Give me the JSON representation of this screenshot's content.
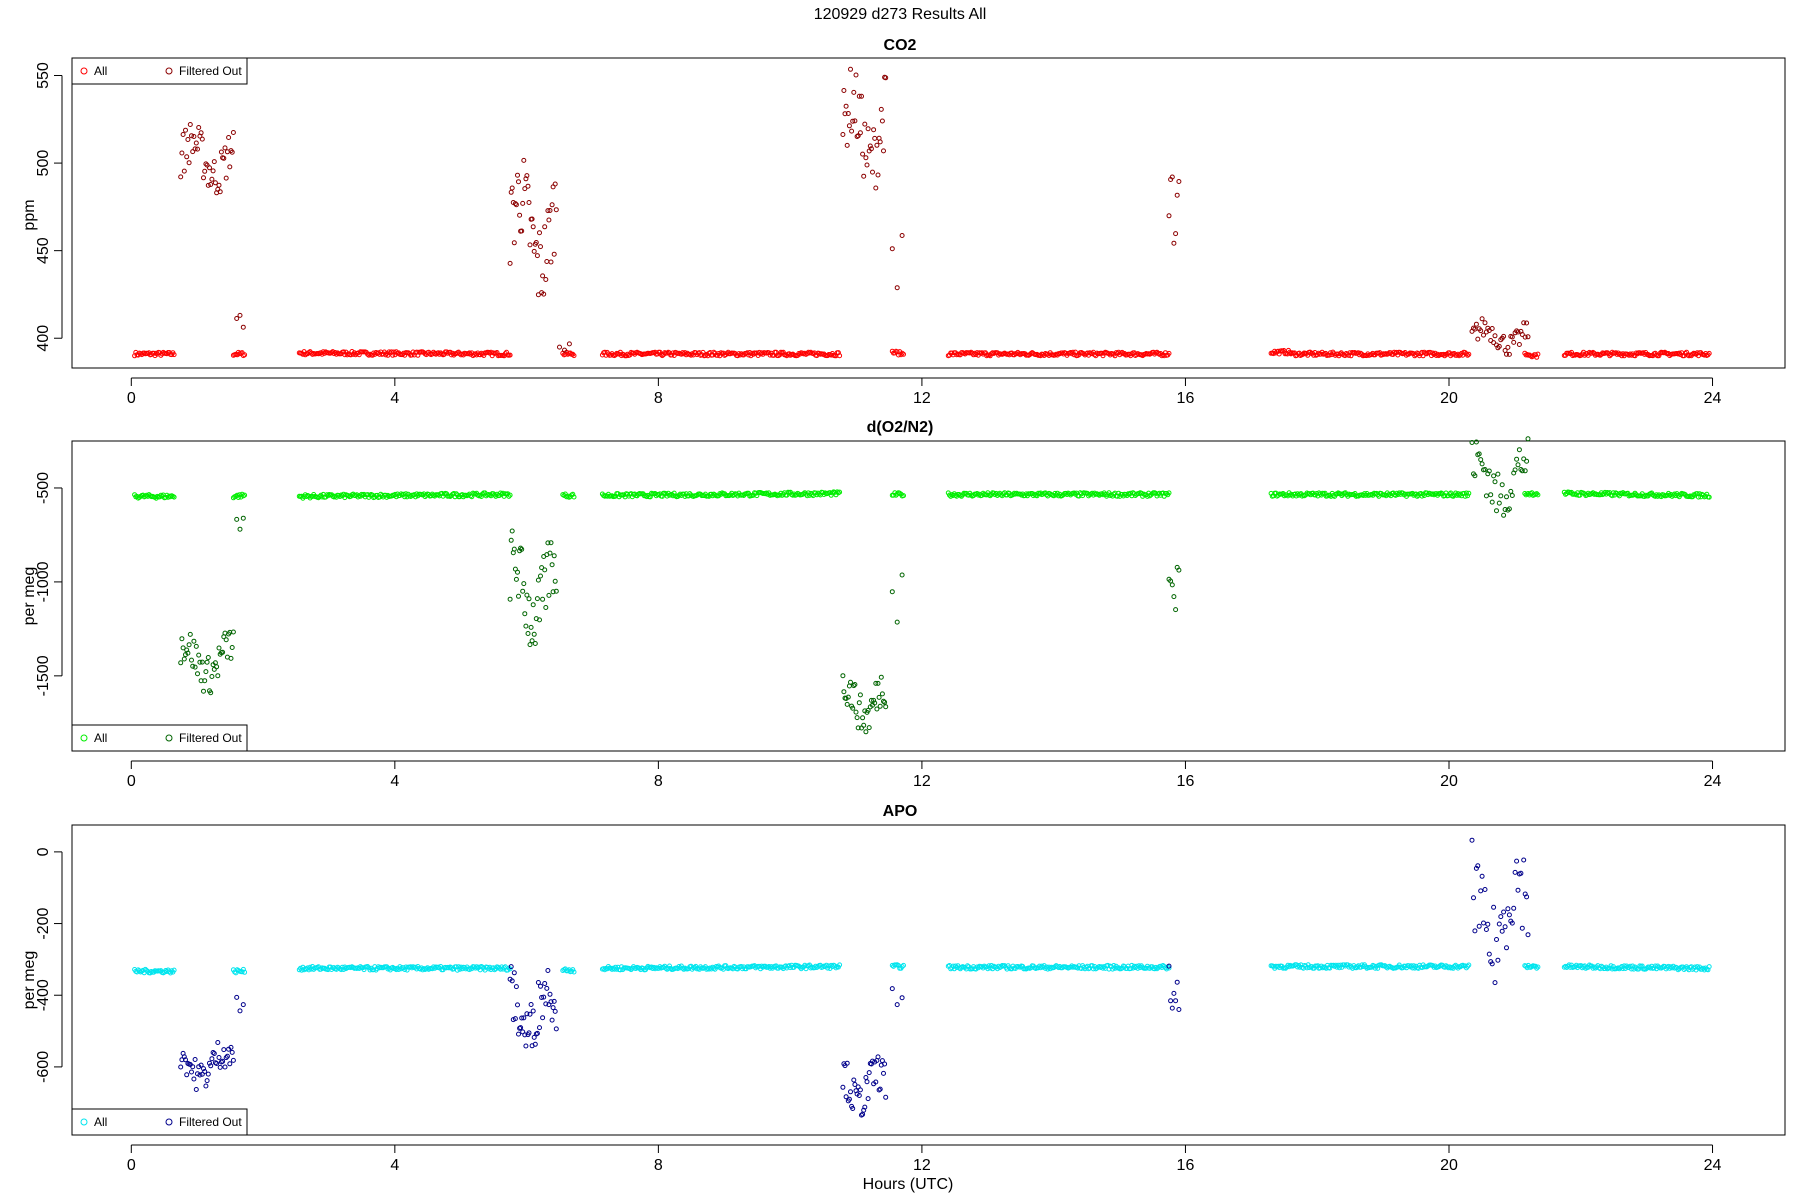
{
  "figure_title": "120929   d273   Results All",
  "colors": {
    "co2_all": "#ff0000",
    "co2_filtered": "#8b0000",
    "o2_all": "#00ee00",
    "o2_filtered": "#006400",
    "apo_all": "#00e5ee",
    "apo_filtered": "#00008b"
  },
  "chart_data": [
    {
      "type": "scatter",
      "title": "CO2",
      "xlabel": "",
      "ylabel": "ppm",
      "xlim": [
        -0.9,
        25.1
      ],
      "ylim": [
        383,
        560
      ],
      "xticks": [
        0,
        4,
        8,
        12,
        16,
        20,
        24
      ],
      "yticks": [
        400,
        450,
        500,
        550
      ],
      "legend": {
        "placement": "top-left",
        "entries": [
          "All",
          "Filtered Out"
        ]
      },
      "series": [
        {
          "name": "All",
          "color": "#ff0000",
          "baseline": [
            {
              "x": [
                0.05,
                0.65
              ],
              "y": [
                391,
                391
              ]
            },
            {
              "x": [
                1.55,
                1.72
              ],
              "y": [
                391,
                391
              ]
            },
            {
              "x": [
                2.55,
                5.75
              ],
              "y": [
                391.5,
                391
              ]
            },
            {
              "x": [
                6.55,
                6.72
              ],
              "y": [
                391,
                391
              ]
            },
            {
              "x": [
                7.15,
                10.75
              ],
              "y": [
                391,
                391
              ]
            },
            {
              "x": [
                11.55,
                11.72
              ],
              "y": [
                392,
                391
              ]
            },
            {
              "x": [
                12.4,
                15.75
              ],
              "y": [
                391,
                391
              ]
            },
            {
              "x": [
                17.3,
                17.6
              ],
              "y": [
                392,
                392
              ]
            },
            {
              "x": [
                17.6,
                20.3
              ],
              "y": [
                391,
                391
              ]
            },
            {
              "x": [
                21.15,
                21.35
              ],
              "y": [
                391,
                390
              ]
            },
            {
              "x": [
                21.75,
                23.95
              ],
              "y": [
                391,
                391
              ]
            }
          ]
        },
        {
          "name": "Filtered Out",
          "color": "#8b0000",
          "clusters": [
            {
              "x": [
                0.75,
                1.55
              ],
              "y": [
                480,
                525
              ],
              "n": 45
            },
            {
              "x": [
                1.6,
                1.7
              ],
              "y": [
                393,
                424
              ],
              "n": 3
            },
            {
              "x": [
                5.75,
                6.45
              ],
              "y": [
                415,
                508
              ],
              "n": 45
            },
            {
              "x": [
                6.5,
                6.65
              ],
              "y": [
                392,
                401
              ],
              "n": 3
            },
            {
              "x": [
                10.8,
                11.45
              ],
              "y": [
                480,
                556
              ],
              "n": 40
            },
            {
              "x": [
                11.55,
                11.7
              ],
              "y": [
                392,
                483
              ],
              "n": 3
            },
            {
              "x": [
                15.75,
                15.9
              ],
              "y": [
                433,
                504
              ],
              "n": 7
            },
            {
              "x": [
                20.35,
                21.2
              ],
              "y": [
                390,
                412
              ],
              "n": 40
            }
          ]
        }
      ]
    },
    {
      "type": "scatter",
      "title": "d(O2/N2)",
      "xlabel": "",
      "ylabel": "per meg",
      "xlim": [
        -0.9,
        25.1
      ],
      "ylim": [
        -1900,
        -250
      ],
      "xticks": [
        0,
        4,
        8,
        12,
        16,
        20,
        24
      ],
      "yticks": [
        -1500,
        -1000,
        -500
      ],
      "legend": {
        "placement": "bottom-left",
        "entries": [
          "All",
          "Filtered Out"
        ]
      },
      "series": [
        {
          "name": "All",
          "color": "#00ee00",
          "baseline": [
            {
              "x": [
                0.05,
                0.65
              ],
              "y": [
                -545,
                -545
              ]
            },
            {
              "x": [
                1.55,
                1.72
              ],
              "y": [
                -545,
                -540
              ]
            },
            {
              "x": [
                2.55,
                5.75
              ],
              "y": [
                -545,
                -535
              ]
            },
            {
              "x": [
                6.55,
                6.72
              ],
              "y": [
                -540,
                -540
              ]
            },
            {
              "x": [
                7.15,
                10.75
              ],
              "y": [
                -540,
                -530
              ]
            },
            {
              "x": [
                11.55,
                11.72
              ],
              "y": [
                -535,
                -535
              ]
            },
            {
              "x": [
                12.4,
                15.75
              ],
              "y": [
                -535,
                -535
              ]
            },
            {
              "x": [
                17.3,
                20.3
              ],
              "y": [
                -535,
                -535
              ]
            },
            {
              "x": [
                21.15,
                21.35
              ],
              "y": [
                -530,
                -530
              ]
            },
            {
              "x": [
                21.75,
                23.95
              ],
              "y": [
                -530,
                -540
              ]
            }
          ]
        },
        {
          "name": "Filtered Out",
          "color": "#006400",
          "clusters": [
            {
              "x": [
                0.75,
                1.55
              ],
              "y": [
                -1600,
                -1230
              ],
              "n": 45
            },
            {
              "x": [
                1.6,
                1.7
              ],
              "y": [
                -850,
                -600
              ],
              "n": 3
            },
            {
              "x": [
                5.75,
                6.45
              ],
              "y": [
                -1400,
                -700
              ],
              "n": 45
            },
            {
              "x": [
                10.8,
                11.45
              ],
              "y": [
                -1830,
                -1450
              ],
              "n": 40
            },
            {
              "x": [
                11.55,
                11.7
              ],
              "y": [
                -1370,
                -810
              ],
              "n": 3
            },
            {
              "x": [
                15.75,
                15.9
              ],
              "y": [
                -1340,
                -730
              ],
              "n": 7
            },
            {
              "x": [
                20.35,
                21.2
              ],
              "y": [
                -680,
                -220
              ],
              "n": 40
            }
          ]
        }
      ]
    },
    {
      "type": "scatter",
      "title": "APO",
      "xlabel": "Hours (UTC)",
      "ylabel": "per meg",
      "xlim": [
        -0.9,
        25.1
      ],
      "ylim": [
        -790,
        75
      ],
      "xticks": [
        0,
        4,
        8,
        12,
        16,
        20,
        24
      ],
      "yticks": [
        -600,
        -400,
        -200,
        0
      ],
      "legend": {
        "placement": "bottom-left",
        "entries": [
          "All",
          "Filtered Out"
        ]
      },
      "series": [
        {
          "name": "All",
          "color": "#00e5ee",
          "baseline": [
            {
              "x": [
                0.05,
                0.65
              ],
              "y": [
                -333,
                -333
              ]
            },
            {
              "x": [
                1.55,
                1.72
              ],
              "y": [
                -333,
                -333
              ]
            },
            {
              "x": [
                2.55,
                5.75
              ],
              "y": [
                -325,
                -325
              ]
            },
            {
              "x": [
                6.55,
                6.72
              ],
              "y": [
                -330,
                -330
              ]
            },
            {
              "x": [
                7.15,
                10.75
              ],
              "y": [
                -325,
                -320
              ]
            },
            {
              "x": [
                11.55,
                11.72
              ],
              "y": [
                -320,
                -320
              ]
            },
            {
              "x": [
                12.4,
                15.75
              ],
              "y": [
                -322,
                -322
              ]
            },
            {
              "x": [
                17.3,
                20.3
              ],
              "y": [
                -320,
                -320
              ]
            },
            {
              "x": [
                21.15,
                21.35
              ],
              "y": [
                -320,
                -320
              ]
            },
            {
              "x": [
                21.75,
                23.95
              ],
              "y": [
                -320,
                -325
              ]
            }
          ]
        },
        {
          "name": "Filtered Out",
          "color": "#00008b",
          "clusters": [
            {
              "x": [
                0.75,
                1.55
              ],
              "y": [
                -670,
                -515
              ],
              "n": 45
            },
            {
              "x": [
                1.6,
                1.7
              ],
              "y": [
                -460,
                -385
              ],
              "n": 3
            },
            {
              "x": [
                5.75,
                6.45
              ],
              "y": [
                -580,
                -300
              ],
              "n": 45
            },
            {
              "x": [
                10.8,
                11.45
              ],
              "y": [
                -750,
                -560
              ],
              "n": 40
            },
            {
              "x": [
                11.55,
                11.7
              ],
              "y": [
                -470,
                -320
              ],
              "n": 3
            },
            {
              "x": [
                15.75,
                15.9
              ],
              "y": [
                -560,
                -295
              ],
              "n": 7
            },
            {
              "x": [
                20.35,
                21.2
              ],
              "y": [
                -390,
                45
              ],
              "n": 40
            }
          ]
        }
      ]
    }
  ]
}
